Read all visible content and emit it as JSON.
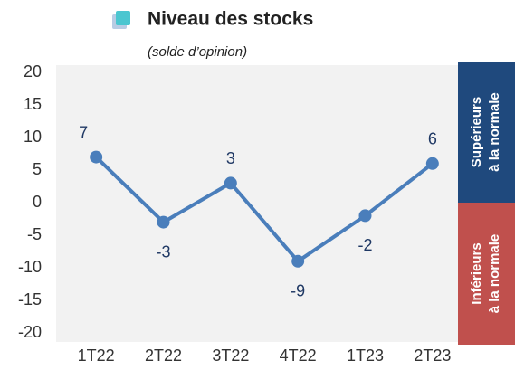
{
  "chart_data": {
    "type": "line",
    "subtitle": "(solde d’opinion)",
    "categories": [
      "1T22",
      "2T22",
      "3T22",
      "4T22",
      "1T23",
      "2T23"
    ],
    "series": [
      {
        "name": "Niveau des stocks",
        "color": "#4a7ebb",
        "values": [
          7,
          -3,
          3,
          -9,
          -2,
          6
        ]
      }
    ],
    "legend_color": "#4bc6d0",
    "ylim": [
      -20,
      20
    ],
    "yticks": [
      -20,
      -15,
      -10,
      -5,
      0,
      5,
      10,
      15,
      20
    ],
    "annotations": [
      {
        "lines": [
          "Supérieurs",
          "à la normale"
        ],
        "color": "#1f497d"
      },
      {
        "lines": [
          "Inférieurs",
          "à la normale"
        ],
        "color": "#c0504d"
      }
    ]
  }
}
